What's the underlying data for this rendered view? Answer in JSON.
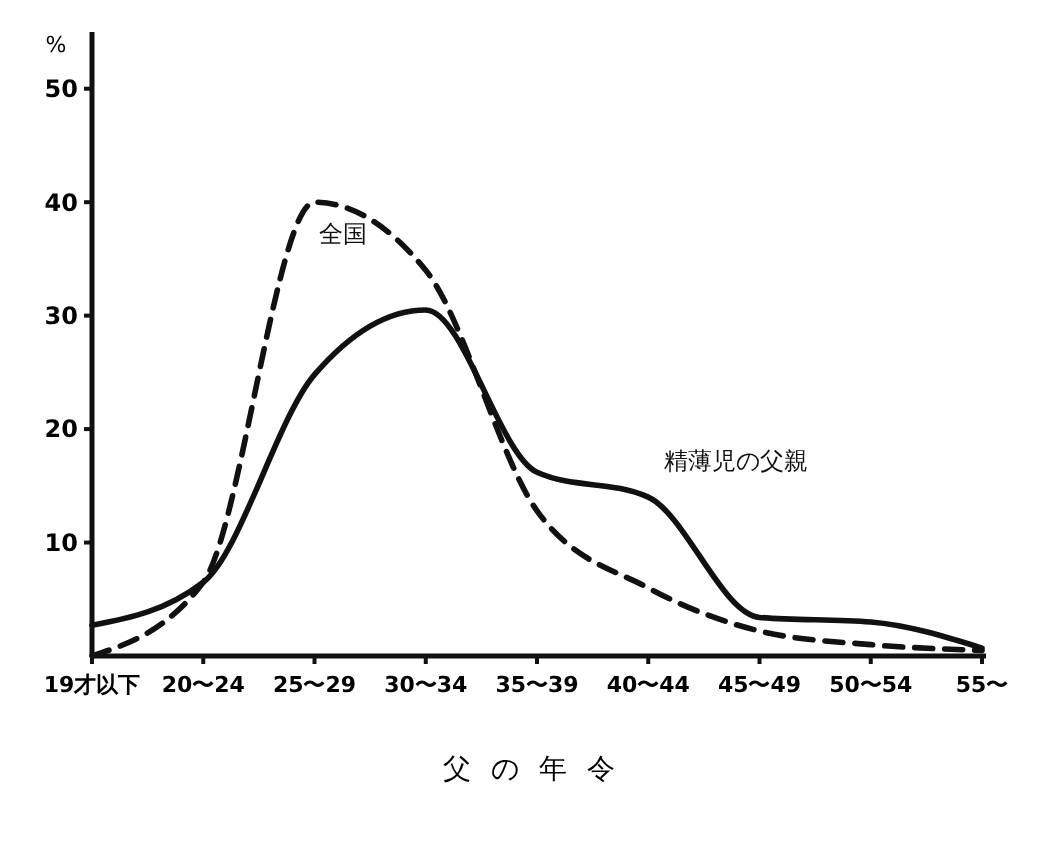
{
  "chart_data": {
    "type": "line",
    "xlabel": "父の年令",
    "ylabel": "%",
    "categories": [
      "19才以下",
      "20〜24",
      "25〜29",
      "30〜34",
      "35〜39",
      "40〜44",
      "45〜49",
      "50〜54",
      "55〜"
    ],
    "ylim": [
      0,
      55
    ],
    "yticks": [
      10,
      20,
      30,
      40,
      50
    ],
    "grid": false,
    "marker": "none",
    "series": [
      {
        "name": "全国",
        "color": "#111111",
        "line_style": "dashed",
        "values": [
          0,
          6.5,
          40,
          34,
          12.8,
          6,
          2.2,
          1,
          0.5
        ]
      },
      {
        "name": "精薄児の父親",
        "color": "#111111",
        "line_style": "solid",
        "values": [
          2.7,
          6.5,
          24.8,
          30.5,
          16.2,
          14,
          3.4,
          3,
          0.7
        ]
      }
    ]
  }
}
